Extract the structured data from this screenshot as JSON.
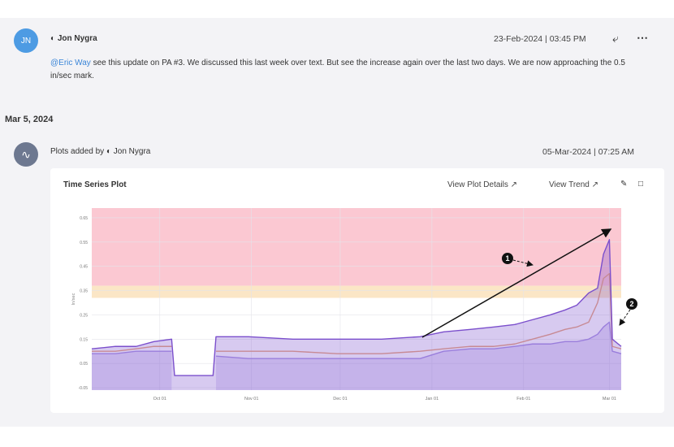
{
  "post": {
    "avatar": "JN",
    "author": "Jon Nygra",
    "date": "23-Feb-2024",
    "time": "03:45 PM",
    "mention": "@Eric Way",
    "message": "see this update on PA #3. We discussed this last week over text. But see the increase again over the last two days. We are now approaching the 0.5 in/sec mark."
  },
  "date_divider": "Mar 5, 2024",
  "plot_post": {
    "action": "Plots added by",
    "author": "Jon Nygra",
    "date": "05-Mar-2024",
    "time": "07:25 AM"
  },
  "chart_data": {
    "type": "line",
    "title": "Time Series Plot",
    "links": [
      "View Plot Details",
      "View Trend"
    ],
    "y_label": "In/sec",
    "x": [
      -23,
      -15,
      -8,
      -2,
      4,
      5,
      18,
      19,
      30,
      45,
      60,
      75,
      88,
      96,
      105,
      113,
      120,
      126,
      132,
      137,
      141,
      145,
      148,
      150,
      152,
      153,
      156
    ],
    "xlim": [
      -23,
      156
    ],
    "xticks": [
      {
        "value": 0,
        "label": "Oct 01"
      },
      {
        "value": 31,
        "label": "Nov 01"
      },
      {
        "value": 61,
        "label": "Dec 01"
      },
      {
        "value": 92,
        "label": "Jan 01"
      },
      {
        "value": 123,
        "label": "Feb 01"
      },
      {
        "value": 152,
        "label": "Mar 01"
      }
    ],
    "ylim": [
      -0.06,
      0.69
    ],
    "yticks": [
      -0.05,
      0.05,
      0.15,
      0.25,
      0.35,
      0.45,
      0.55,
      0.65
    ],
    "grid": true,
    "bands": [
      {
        "from": 0.37,
        "to": 0.69,
        "color": "#fbc8d2"
      },
      {
        "from": 0.32,
        "to": 0.37,
        "color": "#fbe6c6"
      }
    ],
    "series": [
      {
        "color": "#a892e2",
        "area": true,
        "values": [
          0.09,
          0.09,
          0.1,
          0.1,
          0.1,
          null,
          null,
          0.08,
          0.07,
          0.07,
          0.07,
          0.07,
          0.07,
          0.1,
          0.11,
          0.11,
          0.12,
          0.13,
          0.13,
          0.14,
          0.14,
          0.15,
          0.17,
          0.2,
          0.22,
          0.1,
          0.09
        ]
      },
      {
        "color": "#e9a47c",
        "area": false,
        "values": [
          0.1,
          0.1,
          0.11,
          0.12,
          0.12,
          null,
          null,
          0.1,
          0.1,
          0.1,
          0.09,
          0.09,
          0.1,
          0.11,
          0.12,
          0.12,
          0.13,
          0.15,
          0.17,
          0.19,
          0.2,
          0.22,
          0.3,
          0.4,
          0.42,
          0.12,
          0.11
        ]
      },
      {
        "color": "#7b4fcc",
        "area": true,
        "values": [
          0.11,
          0.12,
          0.12,
          0.14,
          0.15,
          0.0,
          0.0,
          0.16,
          0.16,
          0.15,
          0.15,
          0.15,
          0.16,
          0.18,
          0.19,
          0.2,
          0.21,
          0.23,
          0.25,
          0.27,
          0.29,
          0.34,
          0.36,
          0.5,
          0.56,
          0.15,
          0.12
        ]
      }
    ],
    "annotations": [
      "1",
      "2"
    ]
  }
}
